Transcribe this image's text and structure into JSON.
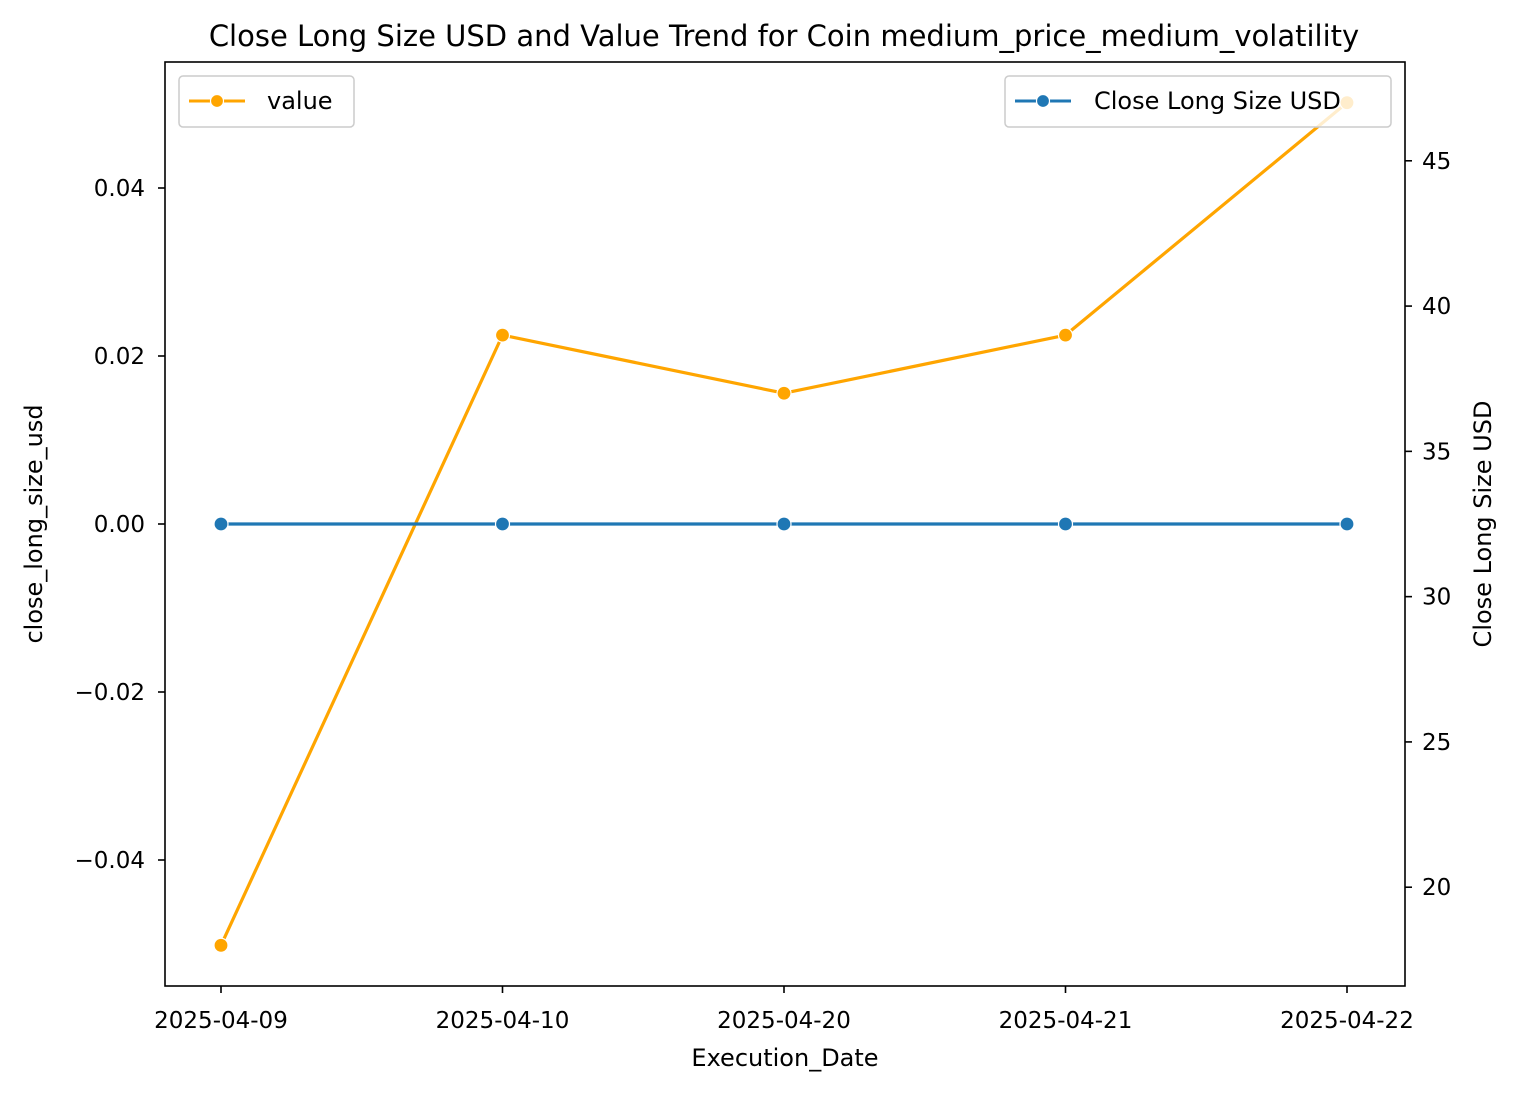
{
  "chart_data": {
    "type": "line",
    "title": "Close Long Size USD and Value Trend for Coin medium_price_medium_volatility",
    "xlabel": "Execution_Date",
    "ylabel_left": "close_long_size_usd",
    "ylabel_right": "Close Long Size USD",
    "categories": [
      "2025-04-09",
      "2025-04-10",
      "2025-04-20",
      "2025-04-21",
      "2025-04-22"
    ],
    "left_axis": {
      "ylim": [
        -0.055,
        0.055
      ],
      "ticks": [
        -0.04,
        -0.02,
        0.0,
        0.02,
        0.04
      ],
      "tick_labels": [
        "−0.04",
        "−0.02",
        "0.00",
        "0.02",
        "0.04"
      ]
    },
    "right_axis": {
      "ylim": [
        16.6,
        48.4
      ],
      "ticks": [
        20,
        25,
        30,
        35,
        40,
        45
      ],
      "tick_labels": [
        "20",
        "25",
        "30",
        "35",
        "40",
        "45"
      ]
    },
    "series": [
      {
        "name": "value",
        "axis": "right",
        "color": "#FFA500",
        "values": [
          18,
          39,
          37,
          39,
          47
        ]
      },
      {
        "name": "Close Long Size USD",
        "axis": "left",
        "color": "#1F77B4",
        "values": [
          0,
          0,
          0,
          0,
          0
        ]
      }
    ],
    "legends": [
      {
        "label": "value",
        "placement": "upper-left",
        "color": "#FFA500"
      },
      {
        "label": "Close Long Size USD",
        "placement": "upper-right",
        "color": "#1F77B4"
      }
    ],
    "grid": false
  }
}
